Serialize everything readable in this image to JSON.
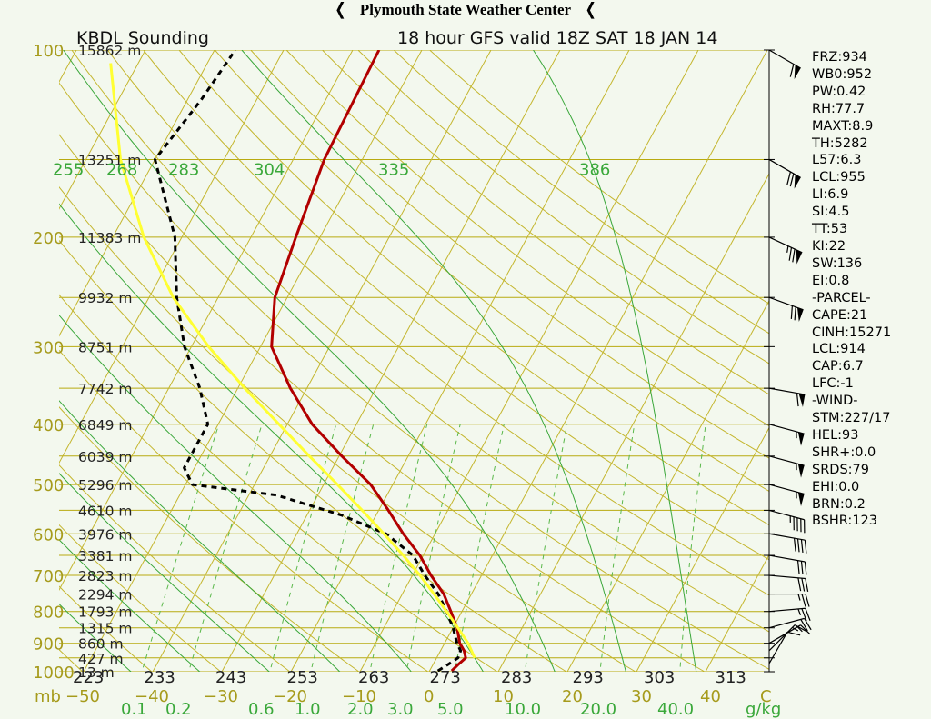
{
  "header": {
    "org": "Plymouth State Weather Center",
    "left_flag": "❬",
    "right_flag": "❬"
  },
  "chart_data": {
    "type": "line",
    "title": "KBDL Sounding",
    "subtitle": "18 hour GFS valid 18Z SAT 18 JAN 14",
    "x_axis_label": "C",
    "y_axis_label": "mb",
    "mixing_ratio_unit": "g/kg",
    "temp_ticks": [
      -50,
      -40,
      -30,
      -20,
      -10,
      0,
      10,
      20,
      30,
      40
    ],
    "pressure_ticks": [
      100,
      200,
      300,
      400,
      500,
      600,
      700,
      800,
      900,
      1000
    ],
    "height_labels": [
      {
        "p": 100,
        "label": "15862 m"
      },
      {
        "p": 150,
        "label": "13251 m"
      },
      {
        "p": 200,
        "label": "11383 m"
      },
      {
        "p": 250,
        "label": "9932 m"
      },
      {
        "p": 300,
        "label": "8751 m"
      },
      {
        "p": 350,
        "label": "7742 m"
      },
      {
        "p": 400,
        "label": "6849 m"
      },
      {
        "p": 450,
        "label": "6039 m"
      },
      {
        "p": 500,
        "label": "5296 m"
      },
      {
        "p": 550,
        "label": "4610 m"
      },
      {
        "p": 600,
        "label": "3976 m"
      },
      {
        "p": 650,
        "label": "3381 m"
      },
      {
        "p": 700,
        "label": "2823 m"
      },
      {
        "p": 750,
        "label": "2294 m"
      },
      {
        "p": 800,
        "label": "1793 m"
      },
      {
        "p": 850,
        "label": "1315 m"
      },
      {
        "p": 900,
        "label": "860 m"
      },
      {
        "p": 950,
        "label": "427 m"
      },
      {
        "p": 1000,
        "label": "13 m"
      }
    ],
    "theta_labels": [
      "223",
      "233",
      "243",
      "253",
      "263",
      "273",
      "283",
      "293",
      "303",
      "313"
    ],
    "theta_e_labels": [
      "255",
      "268",
      "283",
      "304",
      "335",
      "386"
    ],
    "mixing_ratio_labels": [
      "0.1",
      "0.2",
      "0.6",
      "1.0",
      "2.0",
      "3.0",
      "5.0",
      "10.0",
      "20.0",
      "40.0"
    ],
    "series": [
      {
        "name": "temperature",
        "color": "#b20000",
        "points": [
          [
            997,
            3.2
          ],
          [
            975,
            3.6
          ],
          [
            950,
            4.2
          ],
          [
            925,
            3.4
          ],
          [
            900,
            2.2
          ],
          [
            850,
            0.6
          ],
          [
            800,
            -1.6
          ],
          [
            750,
            -4
          ],
          [
            700,
            -7.3
          ],
          [
            650,
            -10.5
          ],
          [
            600,
            -14.6
          ],
          [
            550,
            -18.6
          ],
          [
            500,
            -23.2
          ],
          [
            450,
            -29.6
          ],
          [
            400,
            -36.4
          ],
          [
            350,
            -42.4
          ],
          [
            300,
            -48.4
          ],
          [
            250,
            -51.8
          ],
          [
            200,
            -53.5
          ],
          [
            150,
            -55.5
          ],
          [
            100,
            -56.2
          ]
        ]
      },
      {
        "name": "dewpoint",
        "color": "#000000",
        "points": [
          [
            997,
            1.2
          ],
          [
            975,
            2.1
          ],
          [
            950,
            3.1
          ],
          [
            925,
            2.9
          ],
          [
            900,
            1.8
          ],
          [
            850,
            0.0
          ],
          [
            800,
            -2.2
          ],
          [
            750,
            -4.8
          ],
          [
            700,
            -8.2
          ],
          [
            650,
            -11.5
          ],
          [
            600,
            -17.1
          ],
          [
            560,
            -25
          ],
          [
            520,
            -36
          ],
          [
            500,
            -49
          ],
          [
            470,
            -51.5
          ],
          [
            400,
            -51.5
          ],
          [
            350,
            -55.5
          ],
          [
            300,
            -61
          ],
          [
            250,
            -66
          ],
          [
            200,
            -71
          ],
          [
            150,
            -80
          ],
          [
            120,
            -78
          ],
          [
            100,
            -77
          ]
        ]
      },
      {
        "name": "parcel",
        "color": "#ffff33",
        "points": [
          [
            950,
            5.5
          ],
          [
            900,
            3.4
          ],
          [
            850,
            0.7
          ],
          [
            800,
            -2.2
          ],
          [
            750,
            -5.4
          ],
          [
            700,
            -8.9
          ],
          [
            650,
            -12.9
          ],
          [
            600,
            -17.4
          ],
          [
            550,
            -22.4
          ],
          [
            500,
            -28.0
          ],
          [
            450,
            -34.3
          ],
          [
            400,
            -41.2
          ],
          [
            350,
            -49
          ],
          [
            300,
            -57.5
          ],
          [
            250,
            -66.5
          ],
          [
            200,
            -75.5
          ],
          [
            150,
            -85
          ],
          [
            105,
            -94
          ]
        ]
      }
    ],
    "wind_barbs": [
      {
        "p": 970,
        "dir": 210,
        "spd": 10
      },
      {
        "p": 925,
        "dir": 225,
        "spd": 15
      },
      {
        "p": 900,
        "dir": 240,
        "spd": 15
      },
      {
        "p": 850,
        "dir": 255,
        "spd": 20
      },
      {
        "p": 800,
        "dir": 265,
        "spd": 25
      },
      {
        "p": 750,
        "dir": 270,
        "spd": 25
      },
      {
        "p": 700,
        "dir": 275,
        "spd": 30
      },
      {
        "p": 650,
        "dir": 280,
        "spd": 30
      },
      {
        "p": 600,
        "dir": 280,
        "spd": 40
      },
      {
        "p": 550,
        "dir": 285,
        "spd": 45
      },
      {
        "p": 500,
        "dir": 285,
        "spd": 55
      },
      {
        "p": 450,
        "dir": 285,
        "spd": 55
      },
      {
        "p": 400,
        "dir": 285,
        "spd": 55
      },
      {
        "p": 350,
        "dir": 280,
        "spd": 60
      },
      {
        "p": 250,
        "dir": 290,
        "spd": 70
      },
      {
        "p": 200,
        "dir": 295,
        "spd": 75
      },
      {
        "p": 150,
        "dir": 300,
        "spd": 70
      },
      {
        "p": 100,
        "dir": 300,
        "spd": 60
      }
    ]
  },
  "indices": [
    "FRZ:934",
    "WB0:952",
    "PW:0.42",
    "RH:77.7",
    "MAXT:8.9",
    "TH:5282",
    "L57:6.3",
    "LCL:955",
    "LI:6.9",
    "SI:4.5",
    "TT:53",
    "KI:22",
    "SW:136",
    "EI:0.8",
    "-PARCEL-",
    "CAPE:21",
    "CINH:15271",
    "LCL:914",
    "CAP:6.7",
    "LFC:-1",
    "-WIND-",
    "STM:227/17",
    "HEL:93",
    "SHR+:0.0",
    "SRDS:79",
    "EHI:0.0",
    "BRN:0.2",
    "BSHR:123"
  ],
  "colors": {
    "background": "#f3f8ee",
    "isobar": "#b8aa10",
    "isotherm": "#c4b62e",
    "dry_adiabat": "#2a9a1e",
    "moist_adiabat": "#3aa73a",
    "mixing_ratio": "#5ab84a",
    "label_olive": "#a69b1c",
    "label_green": "#3aa83a",
    "label_dark": "#000000"
  }
}
